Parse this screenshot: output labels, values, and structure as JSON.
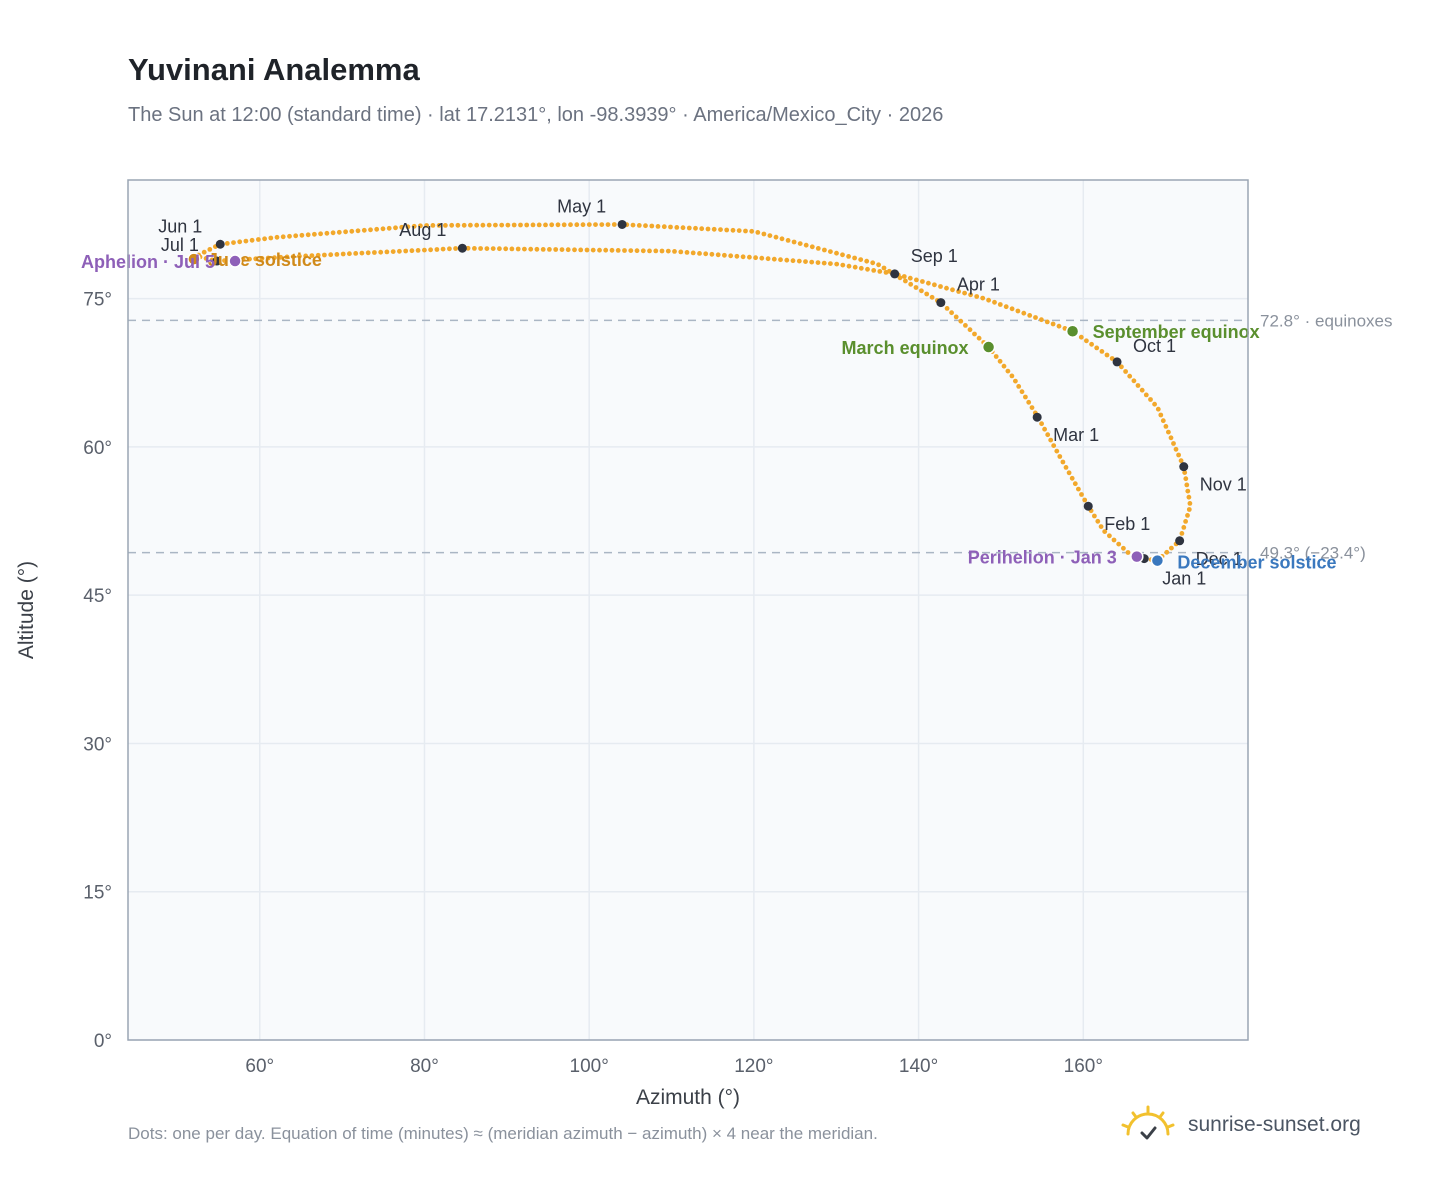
{
  "title": "Yuvinani Analemma",
  "subtitle": "The Sun at 12:00 (standard time) · lat 17.2131°, lon -98.3939° · America/Mexico_City · 2026",
  "footnote": "Dots: one per day. Equation of time (minutes) ≈ (meridian azimuth − azimuth) × 4 near the meridian.",
  "brand": {
    "name": "sunrise-sunset.org",
    "icon": "sun-logo-icon"
  },
  "colors": {
    "curve": "#f2a82b",
    "month_marker": "#2f3440",
    "equinox": "#5a8f2e",
    "solstice_june": "#d08a1a",
    "solstice_december": "#3a78be",
    "apsis": "#8e60b8",
    "reference_line": "#aab6c4",
    "plot_bg": "#f8fafc",
    "grid": "#e6ebf1",
    "frame": "#9aa5b4"
  },
  "chart_data": {
    "type": "scatter",
    "xlabel": "Azimuth (°)",
    "ylabel": "Altitude (°)",
    "xlim": [
      44,
      180
    ],
    "ylim": [
      0,
      87
    ],
    "xticks": [
      60,
      80,
      100,
      120,
      140,
      160
    ],
    "xtick_labels": [
      "60°",
      "80°",
      "100°",
      "120°",
      "140°",
      "160°"
    ],
    "yticks": [
      0,
      15,
      30,
      45,
      60,
      75
    ],
    "ytick_labels": [
      "0°",
      "15°",
      "30°",
      "45°",
      "60°",
      "75°"
    ],
    "grid": true,
    "reference_lines": [
      {
        "y": 72.8,
        "label": "72.8° · equinoxes"
      },
      {
        "y": 49.3,
        "label": "49.3° (−23.4°)"
      }
    ],
    "path_nodes": [
      {
        "az": 166.0,
        "alt": 48.9
      },
      {
        "az": 162.5,
        "alt": 51.5
      },
      {
        "az": 160.6,
        "alt": 54.0
      },
      {
        "az": 157.5,
        "alt": 58.5
      },
      {
        "az": 154.5,
        "alt": 63.0
      },
      {
        "az": 151.5,
        "alt": 67.0
      },
      {
        "az": 148.5,
        "alt": 70.1
      },
      {
        "az": 142.7,
        "alt": 74.6
      },
      {
        "az": 135.0,
        "alt": 78.5
      },
      {
        "az": 120.0,
        "alt": 81.8
      },
      {
        "az": 104.0,
        "alt": 82.5
      },
      {
        "az": 80.0,
        "alt": 82.4
      },
      {
        "az": 62.0,
        "alt": 81.2
      },
      {
        "az": 55.2,
        "alt": 80.5
      },
      {
        "az": 52.3,
        "alt": 79.3
      },
      {
        "az": 54.8,
        "alt": 78.8
      },
      {
        "az": 65.0,
        "alt": 79.3
      },
      {
        "az": 84.6,
        "alt": 80.1
      },
      {
        "az": 110.0,
        "alt": 79.8
      },
      {
        "az": 130.0,
        "alt": 78.5
      },
      {
        "az": 137.1,
        "alt": 77.5
      },
      {
        "az": 148.0,
        "alt": 75.0
      },
      {
        "az": 158.7,
        "alt": 71.7
      },
      {
        "az": 164.1,
        "alt": 68.6
      },
      {
        "az": 169.0,
        "alt": 64.0
      },
      {
        "az": 172.2,
        "alt": 58.0
      },
      {
        "az": 173.0,
        "alt": 54.0
      },
      {
        "az": 171.7,
        "alt": 50.5
      },
      {
        "az": 169.0,
        "alt": 48.5
      },
      {
        "az": 166.0,
        "alt": 48.9
      }
    ],
    "month_markers": [
      {
        "label": "Jan 1",
        "az": 167.4,
        "alt": 48.7
      },
      {
        "label": "Feb 1",
        "az": 160.6,
        "alt": 54.0
      },
      {
        "label": "Mar 1",
        "az": 154.4,
        "alt": 63.0
      },
      {
        "label": "Apr 1",
        "az": 142.7,
        "alt": 74.6
      },
      {
        "label": "May 1",
        "az": 104.0,
        "alt": 82.5
      },
      {
        "label": "Jun 1",
        "az": 55.2,
        "alt": 80.5
      },
      {
        "label": "Jul 1",
        "az": 54.8,
        "alt": 78.8
      },
      {
        "label": "Aug 1",
        "az": 84.6,
        "alt": 80.1
      },
      {
        "label": "Sep 1",
        "az": 137.1,
        "alt": 77.5
      },
      {
        "label": "Oct 1",
        "az": 164.1,
        "alt": 68.6
      },
      {
        "label": "Nov 1",
        "az": 172.2,
        "alt": 58.0
      },
      {
        "label": "Dec 1",
        "az": 171.7,
        "alt": 50.5
      }
    ],
    "events": [
      {
        "label": "March equinox",
        "az": 148.5,
        "alt": 70.1,
        "kind": "equinox"
      },
      {
        "label": "September equinox",
        "az": 158.7,
        "alt": 71.7,
        "kind": "equinox"
      },
      {
        "label": "June solstice",
        "az": 52.0,
        "alt": 79.0,
        "kind": "solstice_june"
      },
      {
        "label": "December solstice",
        "az": 169.0,
        "alt": 48.5,
        "kind": "solstice_december"
      },
      {
        "label": "Perihelion · Jan 3",
        "az": 166.5,
        "alt": 48.9,
        "kind": "apsis"
      },
      {
        "label": "Aphelion · Jul 5",
        "az": 57.0,
        "alt": 78.8,
        "kind": "apsis"
      }
    ]
  }
}
